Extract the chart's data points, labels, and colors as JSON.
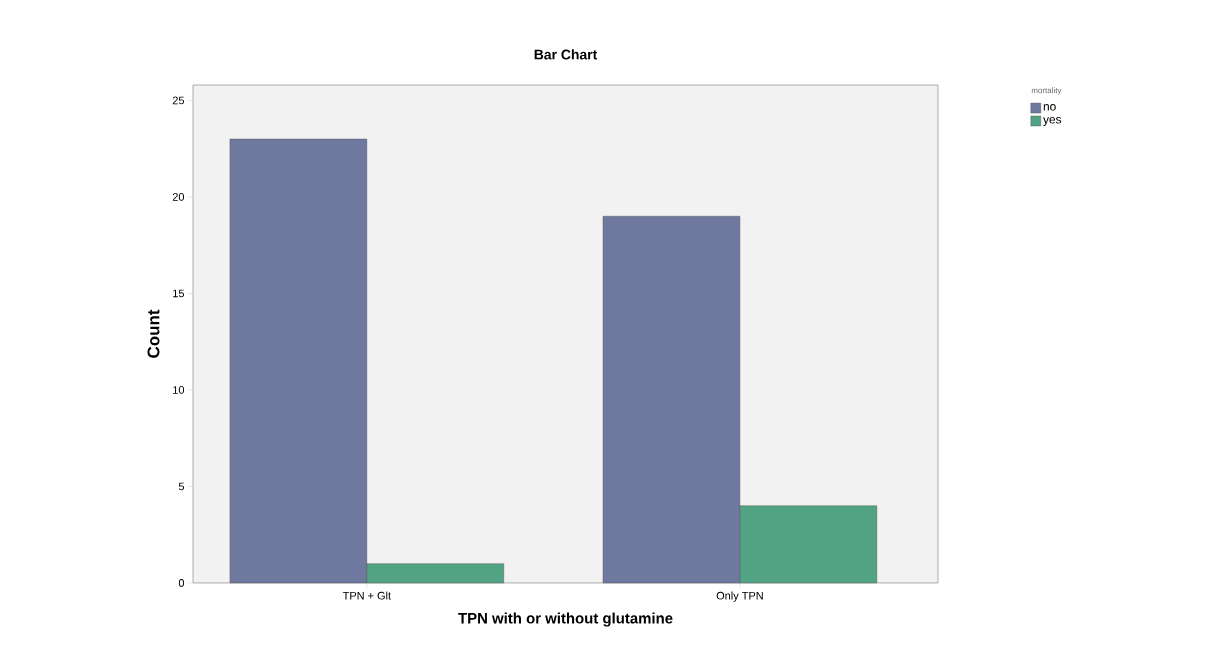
{
  "chart_data": {
    "type": "bar",
    "title": "Bar Chart",
    "xlabel": "TPN with or without glutamine",
    "ylabel": "Count",
    "legend_title": "mortality",
    "categories": [
      "TPN + Glt",
      "Only TPN"
    ],
    "series": [
      {
        "name": "no",
        "color": "#6f79a0",
        "values": [
          23,
          19
        ]
      },
      {
        "name": "yes",
        "color": "#52a384",
        "values": [
          1,
          4
        ]
      }
    ],
    "ylim": [
      0,
      25.8
    ],
    "yticks": [
      0,
      5,
      10,
      15,
      20,
      25
    ],
    "grid": false,
    "legend": "top right"
  }
}
